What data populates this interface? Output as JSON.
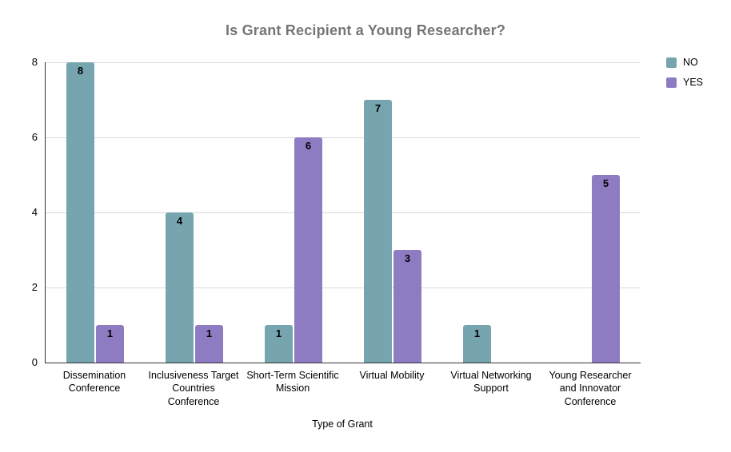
{
  "chart_data": {
    "type": "bar",
    "title": "Is Grant Recipient a Young Researcher?",
    "xlabel": "Type of Grant",
    "ylabel": "",
    "ylim": [
      0,
      8
    ],
    "yticks": [
      0,
      2,
      4,
      6,
      8
    ],
    "grid": true,
    "legend_position": "top-right",
    "categories": [
      "Dissemination Conference",
      "Inclusiveness Target Countries Conference",
      "Short-Term Scientific Mission",
      "Virtual Mobility",
      "Virtual Networking Support",
      "Young Researcher and Innovator Conference"
    ],
    "category_label_lines": [
      [
        "Dissemination",
        "Conference"
      ],
      [
        "Inclusiveness Target",
        "Countries",
        "Conference"
      ],
      [
        "Short-Term Scientific",
        "Mission"
      ],
      [
        "Virtual Mobility"
      ],
      [
        "Virtual Networking",
        "Support"
      ],
      [
        "Young Researcher",
        "and Innovator",
        "Conference"
      ]
    ],
    "series": [
      {
        "name": "NO",
        "color": "#76a5af",
        "values": [
          8,
          4,
          1,
          7,
          1,
          0
        ]
      },
      {
        "name": "YES",
        "color": "#8e7cc3",
        "values": [
          1,
          1,
          6,
          3,
          0,
          5
        ]
      }
    ]
  },
  "colors": {
    "background": "#ffffff",
    "title_text": "#757575",
    "axis_line": "#333333",
    "gridline": "#d9d9d9",
    "label_text": "#000000",
    "value_label_text": "#000000"
  }
}
